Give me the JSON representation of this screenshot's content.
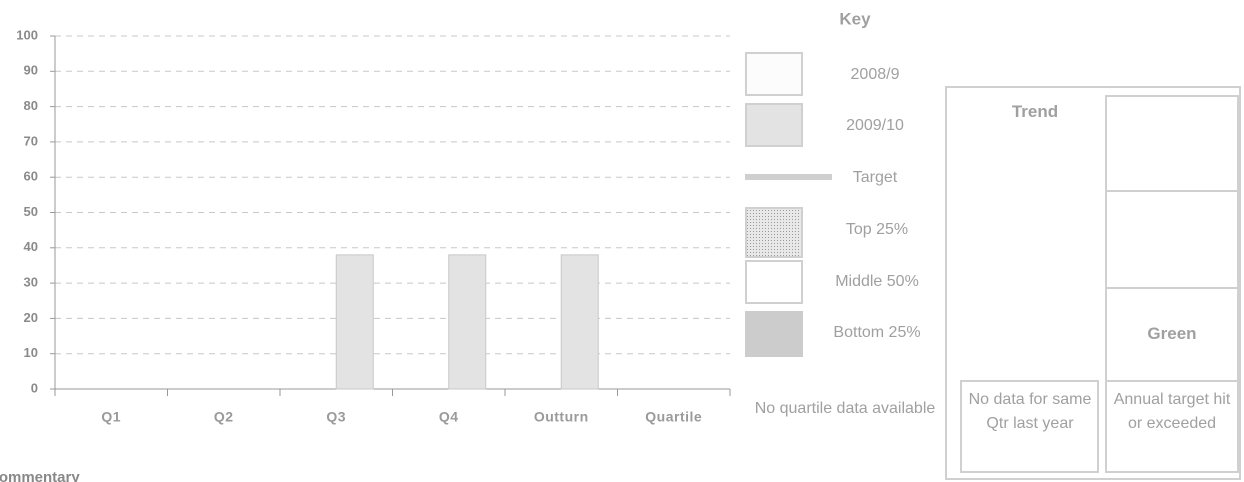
{
  "chart_data": {
    "type": "bar",
    "categories": [
      "Q1",
      "Q2",
      "Q3",
      "Q4",
      "Outturn",
      "Quartile"
    ],
    "series": [
      {
        "name": "2008/9",
        "color": "#fcfcfc",
        "values": [
          null,
          null,
          null,
          null,
          null,
          null
        ]
      },
      {
        "name": "2009/10",
        "color": "#e3e3e3",
        "values": [
          null,
          null,
          38,
          38,
          38,
          null
        ]
      }
    ],
    "ylim": [
      0,
      100
    ],
    "yticks": [
      0,
      10,
      20,
      30,
      40,
      50,
      60,
      70,
      80,
      90,
      100
    ],
    "grid": true,
    "legend_title": "Key"
  },
  "key": {
    "items": [
      "Target",
      "Top 25%",
      "Middle 50%",
      "Bottom 25%"
    ],
    "note": "No quartile data available"
  },
  "panel": {
    "trend": "Trend",
    "status": "Green",
    "trend_note": "No data for same Qtr last year",
    "status_note": "Annual target hit or exceeded"
  },
  "commentary": "Commentary"
}
